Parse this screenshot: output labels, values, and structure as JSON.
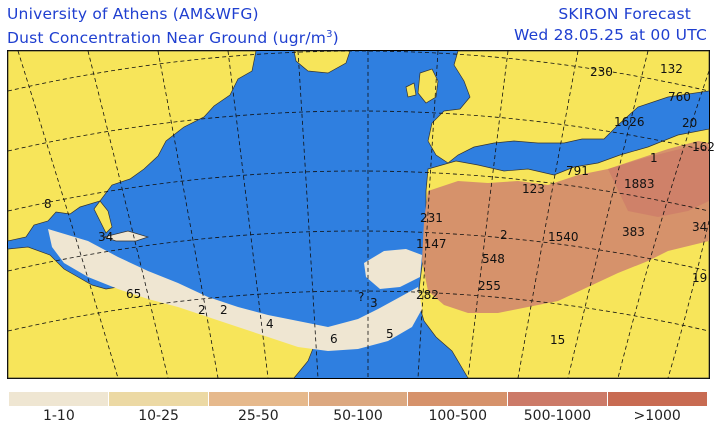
{
  "header": {
    "institution": "University of Athens (AM&WFG)",
    "product": "SKIRON Forecast",
    "variable_prefix": "Dust Concentration Near Ground (ugr/m",
    "variable_exponent": "3",
    "variable_suffix": ")",
    "valid_time": "Wed 28.05.25 at 00 UTC"
  },
  "colors": {
    "ocean": "#2f7fe0",
    "land": "#f7e55a",
    "graticule": "#111111"
  },
  "map_labels": [
    {
      "text": "230"
    },
    {
      "text": "132"
    },
    {
      "text": "760"
    },
    {
      "text": "1626"
    },
    {
      "text": "20"
    },
    {
      "text": "162"
    },
    {
      "text": "1"
    },
    {
      "text": "1883"
    },
    {
      "text": "791"
    },
    {
      "text": "123"
    },
    {
      "text": "231"
    },
    {
      "text": "1147"
    },
    {
      "text": "2"
    },
    {
      "text": "1540"
    },
    {
      "text": "383"
    },
    {
      "text": "34"
    },
    {
      "text": "548"
    },
    {
      "text": "255"
    },
    {
      "text": "282"
    },
    {
      "text": "8"
    },
    {
      "text": "34"
    },
    {
      "text": "65"
    },
    {
      "text": "2"
    },
    {
      "text": "2"
    },
    {
      "text": "4"
    },
    {
      "text": "6"
    },
    {
      "text": "5"
    },
    {
      "text": "?"
    },
    {
      "text": "3"
    },
    {
      "text": "15"
    },
    {
      "text": "19"
    }
  ],
  "legend": [
    {
      "label": "1-10",
      "color": "#efe6d2"
    },
    {
      "label": "10-25",
      "color": "#ecd9a4"
    },
    {
      "label": "25-50",
      "color": "#e6b98c"
    },
    {
      "label": "50-100",
      "color": "#dca880"
    },
    {
      "label": "100-500",
      "color": "#d6926b"
    },
    {
      "label": "500-1000",
      "color": "#cc7a68"
    },
    {
      "label": ">1000",
      "color": "#c86b52"
    }
  ]
}
